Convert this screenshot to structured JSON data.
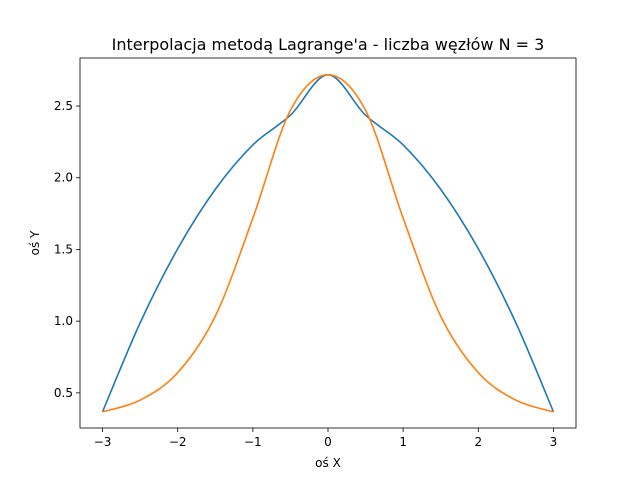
{
  "chart_data": {
    "type": "line",
    "title": "Interpolacja metodą Lagrange'a - liczba węzłów N = 3",
    "xlabel": "oś X",
    "ylabel": "oś Y",
    "xlim": [
      -3.3,
      3.3
    ],
    "ylim": [
      0.255,
      2.835
    ],
    "xticks": [
      {
        "value": -3,
        "label": "−3"
      },
      {
        "value": -2,
        "label": "−2"
      },
      {
        "value": -1,
        "label": "−1"
      },
      {
        "value": 0,
        "label": "0"
      },
      {
        "value": 1,
        "label": "1"
      },
      {
        "value": 2,
        "label": "2"
      },
      {
        "value": 3,
        "label": "3"
      }
    ],
    "yticks": [
      {
        "value": 0.5,
        "label": "0.5"
      },
      {
        "value": 1.0,
        "label": "1.0"
      },
      {
        "value": 1.5,
        "label": "1.5"
      },
      {
        "value": 2.0,
        "label": "2.0"
      },
      {
        "value": 2.5,
        "label": "2.5"
      }
    ],
    "grid": false,
    "series": [
      {
        "color": "#1f77b4",
        "x": [
          -3,
          -2.5,
          -2,
          -1.5,
          -1,
          -0.5,
          0,
          0.5,
          1,
          1.5,
          2,
          2.5,
          3
        ],
        "y": [
          0.368,
          0.988,
          1.505,
          1.919,
          2.229,
          2.436,
          2.718,
          2.436,
          2.229,
          1.919,
          1.505,
          0.988,
          0.368
        ]
      },
      {
        "color": "#ff7f0e",
        "x": [
          -3,
          -2.5,
          -2,
          -1.5,
          -1,
          -0.5,
          0,
          0.5,
          1,
          1.5,
          2,
          2.5,
          3
        ],
        "y": [
          0.368,
          0.449,
          0.641,
          1.034,
          1.718,
          2.47,
          2.718,
          2.47,
          1.718,
          1.034,
          0.641,
          0.449,
          0.368
        ]
      }
    ]
  }
}
